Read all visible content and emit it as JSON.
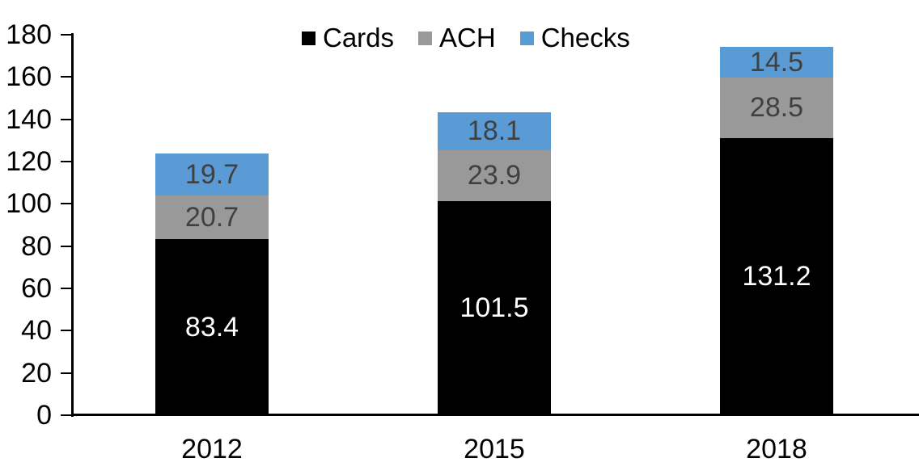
{
  "chart_data": {
    "type": "bar",
    "stacked": true,
    "title": "",
    "xlabel": "",
    "ylabel": "",
    "categories": [
      "2012",
      "2015",
      "2018"
    ],
    "series": [
      {
        "name": "Cards",
        "color": "#000000",
        "label_color": "#FFFFFF",
        "values": [
          83.4,
          101.5,
          131.2
        ]
      },
      {
        "name": "ACH",
        "color": "#999999",
        "label_color": "#404040",
        "values": [
          20.7,
          23.9,
          28.5
        ]
      },
      {
        "name": "Checks",
        "color": "#5B9BD5",
        "label_color": "#404040",
        "values": [
          19.7,
          18.1,
          14.5
        ]
      }
    ],
    "ylim": [
      0,
      180
    ],
    "yticks": [
      0,
      20,
      40,
      60,
      80,
      100,
      120,
      140,
      160,
      180
    ],
    "grid": false,
    "legend_position": "top-center",
    "axis_color": "#000000",
    "background_color": "#FFFFFF"
  }
}
